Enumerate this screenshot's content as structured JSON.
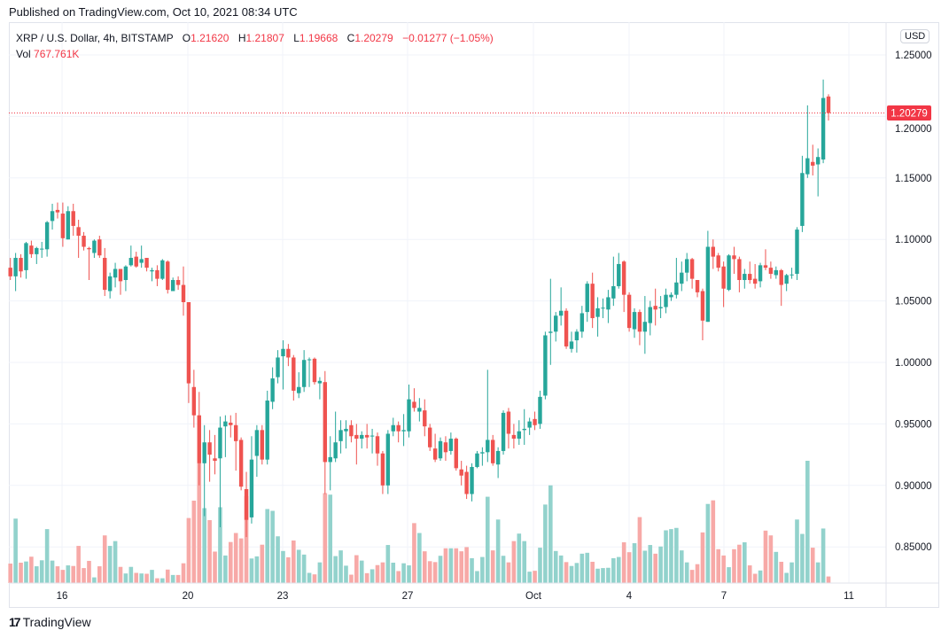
{
  "published": "Published on TradingView.com, Oct 10, 2021 08:34 UTC",
  "legend": {
    "symbol": "XRP / U.S. Dollar, 4h, BITSTAMP",
    "o_label": "O",
    "o_value": "1.21620",
    "h_label": "H",
    "h_value": "1.21807",
    "l_label": "L",
    "l_value": "1.19668",
    "c_label": "C",
    "c_value": "1.20279",
    "change": "−0.01277 (−1.05%)",
    "vol_label": "Vol",
    "vol_value": "767.761K"
  },
  "currency_button": "USD",
  "logo_text": "TradingView",
  "colors": {
    "up": "#26a69a",
    "down": "#ef5350",
    "up_volume": "#92d2cc",
    "down_volume": "#f7a9a7",
    "grid": "#f0f3fa",
    "last_price": "#f23645"
  },
  "chart_data": {
    "type": "candlestick",
    "interval": "4h",
    "last_price": 1.20279,
    "last_price_label": "1.20279",
    "ylim": [
      0.82,
      1.27
    ],
    "y_ticks": [
      "1.25000",
      "1.20000",
      "1.15000",
      "1.10000",
      "1.05000",
      "1.00000",
      "0.95000",
      "0.90000",
      "0.85000"
    ],
    "x_ticks": [
      "16",
      "20",
      "23",
      "27",
      "Oct",
      "4",
      "7",
      "11"
    ],
    "grid": true,
    "fields": [
      "open",
      "high",
      "low",
      "close",
      "volume_k"
    ],
    "candles": [
      [
        1.077,
        1.085,
        1.067,
        1.07,
        2275
      ],
      [
        1.07,
        1.089,
        1.058,
        1.085,
        7525
      ],
      [
        1.085,
        1.088,
        1.069,
        1.074,
        2380
      ],
      [
        1.075,
        1.098,
        1.068,
        1.097,
        2520
      ],
      [
        1.095,
        1.099,
        1.085,
        1.088,
        3080
      ],
      [
        1.088,
        1.094,
        1.08,
        1.093,
        1960
      ],
      [
        1.092,
        1.098,
        1.085,
        1.0925,
        2660
      ],
      [
        1.092,
        1.115,
        1.086,
        1.114,
        6300
      ],
      [
        1.115,
        1.129,
        1.108,
        1.123,
        2625
      ],
      [
        1.124,
        1.13,
        1.117,
        1.122,
        1960
      ],
      [
        1.121,
        1.13,
        1.094,
        1.101,
        1540
      ],
      [
        1.1,
        1.127,
        1.1,
        1.123,
        2065
      ],
      [
        1.123,
        1.129,
        1.103,
        1.111,
        1995
      ],
      [
        1.11,
        1.116,
        1.085,
        1.103,
        4340
      ],
      [
        1.103,
        1.106,
        1.091,
        1.094,
        1750
      ],
      [
        1.093,
        1.094,
        1.067,
        1.092,
        2590
      ],
      [
        1.089,
        1.1,
        1.085,
        1.099,
        665
      ],
      [
        1.1,
        1.103,
        1.085,
        1.087,
        1960
      ],
      [
        1.085,
        1.093,
        1.054,
        1.059,
        5565
      ],
      [
        1.058,
        1.073,
        1.052,
        1.07,
        4340
      ],
      [
        1.069,
        1.081,
        1.061,
        1.076,
        4900
      ],
      [
        1.076,
        1.076,
        1.055,
        1.066,
        1890
      ],
      [
        1.067,
        1.079,
        1.058,
        1.078,
        1120
      ],
      [
        1.079,
        1.095,
        1.078,
        1.085,
        1890
      ],
      [
        1.086,
        1.09,
        1.077,
        1.078,
        1190
      ],
      [
        1.081,
        1.095,
        1.077,
        1.084,
        1120
      ],
      [
        1.085,
        1.085,
        1.074,
        1.077,
        1085
      ],
      [
        1.074,
        1.077,
        1.066,
        1.075,
        1540
      ],
      [
        1.075,
        1.079,
        1.062,
        1.068,
        560
      ],
      [
        1.068,
        1.084,
        1.067,
        1.083,
        560
      ],
      [
        1.082,
        1.083,
        1.056,
        1.059,
        1575
      ],
      [
        1.058,
        1.069,
        1.058,
        1.067,
        945
      ],
      [
        1.067,
        1.07,
        1.059,
        1.063,
        945
      ],
      [
        1.063,
        1.078,
        1.038,
        1.049,
        2310
      ],
      [
        1.049,
        1.049,
        0.967,
        0.983,
        7595
      ],
      [
        0.98,
        0.994,
        0.947,
        0.957,
        9625
      ],
      [
        0.957,
        0.976,
        0.9,
        0.918,
        14000
      ],
      [
        0.918,
        0.949,
        0.875,
        0.935,
        8750
      ],
      [
        0.935,
        0.945,
        0.903,
        0.925,
        7350
      ],
      [
        0.922,
        0.941,
        0.909,
        0.92,
        3675
      ],
      [
        0.922,
        0.956,
        0.866,
        0.947,
        8855
      ],
      [
        0.948,
        0.957,
        0.923,
        0.952,
        3220
      ],
      [
        0.951,
        0.957,
        0.939,
        0.949,
        4795
      ],
      [
        0.949,
        0.959,
        0.912,
        0.936,
        5845
      ],
      [
        0.937,
        0.939,
        0.896,
        0.899,
        5215
      ],
      [
        0.897,
        0.911,
        0.858,
        0.872,
        10150
      ],
      [
        0.874,
        0.94,
        0.869,
        0.921,
        2870
      ],
      [
        0.924,
        0.949,
        0.907,
        0.945,
        3115
      ],
      [
        0.945,
        0.949,
        0.917,
        0.921,
        4480
      ],
      [
        0.921,
        0.977,
        0.917,
        0.969,
        8645
      ],
      [
        0.968,
        0.996,
        0.962,
        0.987,
        8435
      ],
      [
        0.988,
        1.01,
        0.983,
        1.004,
        5460
      ],
      [
        1.005,
        1.018,
        0.978,
        1.011,
        3745
      ],
      [
        1.011,
        1.015,
        0.997,
        1.004,
        3010
      ],
      [
        1.004,
        1.006,
        0.969,
        0.977,
        4970
      ],
      [
        0.975,
        0.992,
        0.971,
        0.98,
        3885
      ],
      [
        0.98,
        1.01,
        0.976,
        1.002,
        3325
      ],
      [
        1.002,
        1.004,
        0.98,
        1.0025,
        1190
      ],
      [
        1.003,
        1.004,
        0.982,
        0.984,
        1015
      ],
      [
        0.983,
        0.988,
        0.97,
        0.985,
        2415
      ],
      [
        0.984,
        0.993,
        0.893,
        0.919,
        10500
      ],
      [
        0.919,
        0.94,
        0.896,
        0.923,
        10325
      ],
      [
        0.922,
        0.96,
        0.919,
        0.935,
        3150
      ],
      [
        0.936,
        0.953,
        0.926,
        0.945,
        3815
      ],
      [
        0.944,
        0.953,
        0.93,
        0.946,
        2030
      ],
      [
        0.949,
        0.953,
        0.935,
        0.94,
        980
      ],
      [
        0.941,
        0.95,
        0.917,
        0.938,
        3255
      ],
      [
        0.938,
        0.944,
        0.93,
        0.941,
        2625
      ],
      [
        0.941,
        0.95,
        0.93,
        0.939,
        1155
      ],
      [
        0.94,
        0.946,
        0.926,
        0.9405,
        1610
      ],
      [
        0.94,
        0.943,
        0.916,
        0.926,
        2100
      ],
      [
        0.926,
        0.928,
        0.893,
        0.9,
        2415
      ],
      [
        0.9,
        0.945,
        0.893,
        0.942,
        4445
      ],
      [
        0.944,
        0.955,
        0.94,
        0.949,
        2380
      ],
      [
        0.949,
        0.952,
        0.935,
        0.944,
        1400
      ],
      [
        0.944,
        0.958,
        0.932,
        0.945,
        2310
      ],
      [
        0.944,
        0.982,
        0.939,
        0.97,
        2065
      ],
      [
        0.968,
        0.979,
        0.96,
        0.963,
        7000
      ],
      [
        0.96,
        0.971,
        0.952,
        0.963,
        5845
      ],
      [
        0.961,
        0.97,
        0.94,
        0.948,
        3710
      ],
      [
        0.947,
        0.95,
        0.928,
        0.931,
        2555
      ],
      [
        0.93,
        0.942,
        0.919,
        0.921,
        2450
      ],
      [
        0.922,
        0.939,
        0.92,
        0.936,
        3185
      ],
      [
        0.935,
        0.94,
        0.92,
        0.927,
        4060
      ],
      [
        0.928,
        0.943,
        0.925,
        0.938,
        4060
      ],
      [
        0.938,
        0.939,
        0.912,
        0.914,
        4060
      ],
      [
        0.913,
        0.92,
        0.9,
        0.908,
        3710
      ],
      [
        0.911,
        0.916,
        0.889,
        0.893,
        4200
      ],
      [
        0.893,
        0.918,
        0.887,
        0.915,
        2905
      ],
      [
        0.915,
        0.928,
        0.914,
        0.926,
        1400
      ],
      [
        0.926,
        0.931,
        0.916,
        0.927,
        3045
      ],
      [
        0.927,
        0.994,
        0.919,
        0.937,
        10080
      ],
      [
        0.937,
        0.941,
        0.916,
        0.918,
        3815
      ],
      [
        0.917,
        0.931,
        0.906,
        0.928,
        7420
      ],
      [
        0.928,
        0.961,
        0.925,
        0.959,
        3185
      ],
      [
        0.96,
        0.963,
        0.93,
        0.942,
        2415
      ],
      [
        0.941,
        0.95,
        0.93,
        0.938,
        4900
      ],
      [
        0.938,
        0.953,
        0.933,
        0.944,
        5775
      ],
      [
        0.945,
        0.962,
        0.933,
        0.946,
        4900
      ],
      [
        0.947,
        0.955,
        0.941,
        0.952,
        1330
      ],
      [
        0.954,
        0.96,
        0.945,
        0.949,
        1435
      ],
      [
        0.95,
        0.977,
        0.946,
        0.972,
        4130
      ],
      [
        0.973,
        1.025,
        0.97,
        1.022,
        9170
      ],
      [
        1.024,
        1.068,
        0.998,
        1.025,
        11410
      ],
      [
        1.025,
        1.041,
        1.017,
        1.038,
        3745
      ],
      [
        1.038,
        1.061,
        1.03,
        1.042,
        3220
      ],
      [
        1.042,
        1.044,
        1.011,
        1.013,
        2450
      ],
      [
        1.011,
        1.025,
        1.008,
        1.017,
        1995
      ],
      [
        1.018,
        1.027,
        1.008,
        1.025,
        2345
      ],
      [
        1.025,
        1.046,
        1.02,
        1.04,
        3430
      ],
      [
        1.041,
        1.066,
        1.033,
        1.064,
        3535
      ],
      [
        1.064,
        1.073,
        1.028,
        1.036,
        2485
      ],
      [
        1.037,
        1.053,
        1.021,
        1.044,
        1680
      ],
      [
        1.044,
        1.052,
        1.036,
        1.0445,
        1750
      ],
      [
        1.043,
        1.059,
        1.032,
        1.053,
        1785
      ],
      [
        1.052,
        1.086,
        1.046,
        1.062,
        2905
      ],
      [
        1.062,
        1.089,
        1.06,
        1.08,
        3045
      ],
      [
        1.082,
        1.083,
        1.041,
        1.055,
        4760
      ],
      [
        1.055,
        1.057,
        1.025,
        1.028,
        3605
      ],
      [
        1.027,
        1.044,
        1.02,
        1.041,
        4655
      ],
      [
        1.041,
        1.043,
        1.014,
        1.025,
        7700
      ],
      [
        1.025,
        1.054,
        1.007,
        1.033,
        3780
      ],
      [
        1.032,
        1.05,
        1.022,
        1.045,
        4445
      ],
      [
        1.046,
        1.06,
        1.03,
        1.043,
        3430
      ],
      [
        1.044,
        1.054,
        1.036,
        1.045,
        4270
      ],
      [
        1.045,
        1.06,
        1.04,
        1.055,
        6160
      ],
      [
        1.053,
        1.057,
        1.05,
        1.055,
        6300
      ],
      [
        1.055,
        1.085,
        1.052,
        1.065,
        6440
      ],
      [
        1.064,
        1.082,
        1.058,
        1.073,
        3815
      ],
      [
        1.073,
        1.089,
        1.066,
        1.084,
        2415
      ],
      [
        1.084,
        1.085,
        1.06,
        1.068,
        1540
      ],
      [
        1.067,
        1.067,
        1.053,
        1.057,
        2205
      ],
      [
        1.058,
        1.06,
        1.018,
        1.034,
        5915
      ],
      [
        1.033,
        1.107,
        1.033,
        1.094,
        9240
      ],
      [
        1.094,
        1.1,
        1.076,
        1.086,
        9660
      ],
      [
        1.087,
        1.089,
        1.074,
        1.077,
        3955
      ],
      [
        1.078,
        1.082,
        1.045,
        1.06,
        3220
      ],
      [
        1.059,
        1.088,
        1.058,
        1.087,
        1855
      ],
      [
        1.087,
        1.094,
        1.072,
        1.084,
        3955
      ],
      [
        1.084,
        1.086,
        1.057,
        1.067,
        4480
      ],
      [
        1.067,
        1.076,
        1.06,
        1.072,
        4760
      ],
      [
        1.072,
        1.082,
        1.064,
        1.067,
        2065
      ],
      [
        1.068,
        1.08,
        1.06,
        1.064,
        1085
      ],
      [
        1.066,
        1.081,
        1.061,
        1.079,
        1470
      ],
      [
        1.079,
        1.092,
        1.075,
        1.077,
        6125
      ],
      [
        1.077,
        1.082,
        1.068,
        1.072,
        5565
      ],
      [
        1.071,
        1.078,
        1.068,
        1.075,
        3640
      ],
      [
        1.075,
        1.076,
        1.046,
        1.063,
        2485
      ],
      [
        1.064,
        1.072,
        1.058,
        1.071,
        1190
      ],
      [
        1.071,
        1.077,
        1.068,
        1.0715,
        2415
      ],
      [
        1.072,
        1.11,
        1.067,
        1.108,
        7420
      ],
      [
        1.111,
        1.168,
        1.106,
        1.154,
        5740
      ],
      [
        1.153,
        1.209,
        1.15,
        1.166,
        14280
      ],
      [
        1.163,
        1.177,
        1.152,
        1.16,
        4130
      ],
      [
        1.161,
        1.174,
        1.135,
        1.167,
        2415
      ],
      [
        1.165,
        1.23,
        1.162,
        1.215,
        6370
      ],
      [
        1.2162,
        1.21807,
        1.19668,
        1.20279,
        767.761
      ]
    ]
  }
}
